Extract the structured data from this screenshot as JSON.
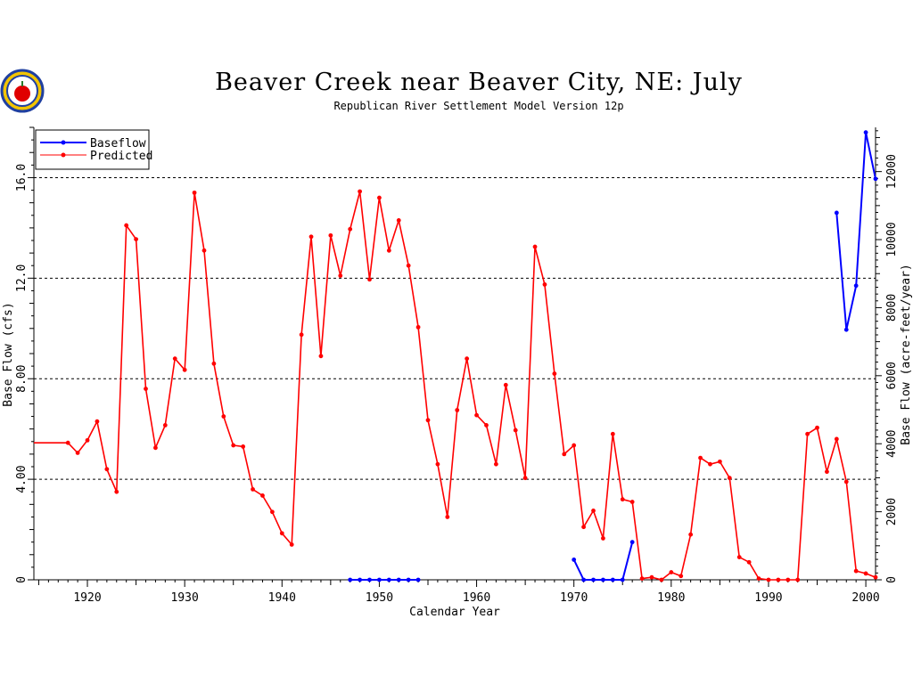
{
  "chart_data": {
    "type": "line",
    "title": "Beaver Creek near Beaver City, NE: July",
    "subtitle": "Republican River Settlement Model Version 12p",
    "xlabel": "Calendar Year",
    "ylabel": "Base Flow (cfs)",
    "y2label": "Base Flow (acre-feet/year)",
    "xlim": [
      1914.5,
      2001
    ],
    "ylim": [
      0,
      18.0
    ],
    "y2lim": [
      0,
      13300
    ],
    "x_ticks": [
      1920,
      1930,
      1940,
      1950,
      1960,
      1970,
      1980,
      1990,
      2000
    ],
    "y_ticks": [
      0,
      4.0,
      8.0,
      12.0,
      16.0
    ],
    "y_tick_labels": [
      "0",
      "4.00",
      "8.00",
      "12.0",
      "16.0"
    ],
    "y2_ticks": [
      0,
      2000,
      4000,
      6000,
      8000,
      10000,
      12000
    ],
    "grid": "horizontal dotted at 4, 8, 12, 16",
    "legend": "top-left",
    "colors": {
      "Baseflow": "#0000ff",
      "Predicted": "#ff0000",
      "background": "#ffffff"
    },
    "series": [
      {
        "name": "Predicted",
        "segments": [
          [
            [
              1914.5,
              5.45
            ],
            [
              1918,
              5.45
            ],
            [
              1919,
              5.05
            ],
            [
              1920,
              5.55
            ],
            [
              1921,
              6.3
            ],
            [
              1922,
              4.4
            ],
            [
              1923,
              3.5
            ],
            [
              1924,
              14.1
            ],
            [
              1925,
              13.55
            ],
            [
              1926,
              7.6
            ],
            [
              1927,
              5.25
            ],
            [
              1928,
              6.15
            ],
            [
              1929,
              8.8
            ],
            [
              1930,
              8.35
            ],
            [
              1931,
              15.4
            ],
            [
              1932,
              13.1
            ],
            [
              1933,
              8.6
            ],
            [
              1934,
              6.5
            ],
            [
              1935,
              5.35
            ],
            [
              1936,
              5.3
            ],
            [
              1937,
              3.6
            ],
            [
              1938,
              3.35
            ],
            [
              1939,
              2.7
            ],
            [
              1940,
              1.85
            ],
            [
              1941,
              1.4
            ],
            [
              1942,
              9.75
            ],
            [
              1943,
              13.65
            ],
            [
              1944,
              8.9
            ],
            [
              1945,
              13.7
            ],
            [
              1946,
              12.1
            ],
            [
              1947,
              13.95
            ],
            [
              1948,
              15.45
            ],
            [
              1949,
              11.95
            ],
            [
              1950,
              15.2
            ],
            [
              1951,
              13.1
            ],
            [
              1952,
              14.3
            ],
            [
              1953,
              12.5
            ],
            [
              1954,
              10.05
            ],
            [
              1955,
              6.35
            ],
            [
              1956,
              4.6
            ],
            [
              1957,
              2.5
            ],
            [
              1958,
              6.75
            ],
            [
              1959,
              8.8
            ],
            [
              1960,
              6.55
            ],
            [
              1961,
              6.15
            ],
            [
              1962,
              4.6
            ],
            [
              1963,
              7.75
            ],
            [
              1964,
              5.95
            ],
            [
              1965,
              4.05
            ],
            [
              1966,
              13.25
            ],
            [
              1967,
              11.75
            ],
            [
              1968,
              8.2
            ],
            [
              1969,
              5.0
            ],
            [
              1970,
              5.35
            ],
            [
              1971,
              2.1
            ],
            [
              1972,
              2.75
            ],
            [
              1973,
              1.65
            ],
            [
              1974,
              5.8
            ],
            [
              1975,
              3.2
            ],
            [
              1976,
              3.1
            ],
            [
              1977,
              0.05
            ],
            [
              1978,
              0.1
            ],
            [
              1979,
              0.0
            ],
            [
              1980,
              0.3
            ],
            [
              1981,
              0.15
            ],
            [
              1982,
              1.8
            ],
            [
              1983,
              4.85
            ],
            [
              1984,
              4.6
            ],
            [
              1985,
              4.7
            ],
            [
              1986,
              4.05
            ],
            [
              1987,
              0.9
            ],
            [
              1988,
              0.7
            ],
            [
              1989,
              0.05
            ],
            [
              1990,
              0.0
            ],
            [
              1991,
              0.0
            ],
            [
              1992,
              0.0
            ],
            [
              1993,
              0.0
            ],
            [
              1994,
              5.8
            ],
            [
              1995,
              6.05
            ],
            [
              1996,
              4.3
            ],
            [
              1997,
              5.6
            ],
            [
              1998,
              3.9
            ],
            [
              1999,
              0.35
            ],
            [
              2000,
              0.25
            ],
            [
              2001,
              0.1
            ]
          ]
        ]
      },
      {
        "name": "Baseflow",
        "segments": [
          [
            [
              1947,
              0.0
            ],
            [
              1948,
              0.0
            ],
            [
              1949,
              0.0
            ],
            [
              1950,
              0.0
            ],
            [
              1951,
              0.0
            ],
            [
              1952,
              0.0
            ],
            [
              1953,
              0.0
            ],
            [
              1954,
              0.0
            ]
          ],
          [
            [
              1970,
              0.8
            ],
            [
              1971,
              0.0
            ],
            [
              1972,
              0.0
            ],
            [
              1973,
              0.0
            ],
            [
              1974,
              0.0
            ],
            [
              1975,
              0.0
            ],
            [
              1976,
              1.5
            ]
          ],
          [
            [
              1997,
              14.6
            ],
            [
              1998,
              9.95
            ],
            [
              1999,
              11.7
            ],
            [
              2000,
              17.8
            ],
            [
              2001,
              15.95
            ]
          ]
        ]
      }
    ]
  }
}
